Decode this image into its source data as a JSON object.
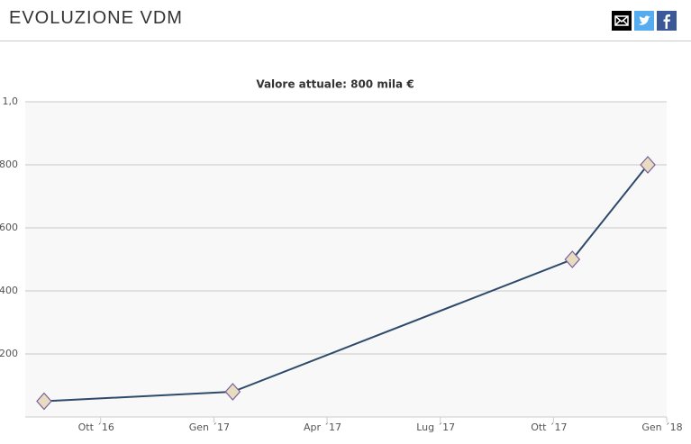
{
  "header": {
    "title": "EVOLUZIONE VDM"
  },
  "chart_data": {
    "type": "line",
    "title": "Valore attuale: 800 mila €",
    "x": [
      "2016-08",
      "2017-01",
      "2017-10",
      "2017-12"
    ],
    "series": [
      {
        "color": "#2e4a6b",
        "values": [
          50,
          80,
          500,
          800
        ]
      }
    ],
    "xlim": [
      "2016-08",
      "2018-01"
    ],
    "xticks": [
      {
        "value": "2016-10",
        "label": "Ott ´16"
      },
      {
        "value": "2017-01",
        "label": "Gen ´17"
      },
      {
        "value": "2017-04",
        "label": "Apr ´17"
      },
      {
        "value": "2017-07",
        "label": "Lug ´17"
      },
      {
        "value": "2017-10",
        "label": "Ott ´17"
      },
      {
        "value": "2018-01",
        "label": "Gen ´18"
      }
    ],
    "ylim": [
      0,
      1000
    ],
    "yticks": [
      200,
      400,
      600,
      800,
      {
        "value": 1000,
        "label": "1,0"
      }
    ],
    "grid": true
  }
}
